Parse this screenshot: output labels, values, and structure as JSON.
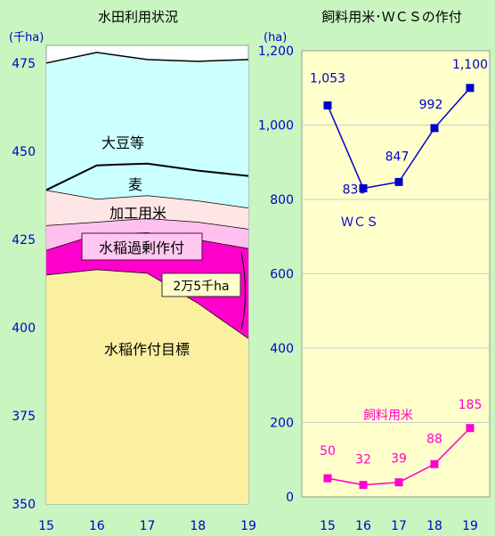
{
  "chart_data": [
    {
      "type": "area",
      "title": "水田利用状況",
      "unit": "(千ha)",
      "x": [
        "15",
        "16",
        "17",
        "18",
        "19"
      ],
      "ylim": [
        350,
        480
      ],
      "yticks": [
        "350",
        "375",
        "400",
        "425",
        "450",
        "475"
      ],
      "layers": [
        {
          "name": "水稲作付目標",
          "values": [
            415,
            416.5,
            415.5,
            407,
            397
          ],
          "color": "#faf0a0"
        },
        {
          "name": "水稲過剰作付",
          "values": [
            422,
            426.5,
            427,
            425,
            422.5
          ],
          "color": "#ff00cc"
        },
        {
          "name": "加工用米",
          "values": [
            429,
            430,
            431,
            430,
            428
          ],
          "color": "#ffc0f0"
        },
        {
          "name": "麦",
          "values": [
            439,
            436.5,
            437.5,
            436,
            434
          ],
          "color": "#ffe6e6"
        },
        {
          "name": "大豆等",
          "values": [
            475,
            478,
            476,
            475.5,
            476
          ],
          "color": "#ccffff"
        }
      ],
      "boundary_line": [
        439,
        446,
        446.5,
        444.5,
        443
      ],
      "annotation": "2万5千ha"
    },
    {
      "type": "line",
      "title": "飼料用米･ＷＣＳの作付",
      "unit": "(ha)",
      "x": [
        "15",
        "16",
        "17",
        "18",
        "19"
      ],
      "ylim": [
        0,
        1200
      ],
      "yticks": [
        "0",
        "200",
        "400",
        "600",
        "800",
        "1,000",
        "1,200"
      ],
      "series": [
        {
          "name": "ＷＣＳ",
          "values": [
            1053,
            830,
            847,
            992,
            1100
          ],
          "labels": [
            "1,053",
            "830",
            "847",
            "992",
            "1,100"
          ],
          "color": "#0000cc"
        },
        {
          "name": "飼料用米",
          "values": [
            50,
            32,
            39,
            88,
            185
          ],
          "labels": [
            "50",
            "32",
            "39",
            "88",
            "185"
          ],
          "color": "#ff00cc"
        }
      ]
    }
  ]
}
